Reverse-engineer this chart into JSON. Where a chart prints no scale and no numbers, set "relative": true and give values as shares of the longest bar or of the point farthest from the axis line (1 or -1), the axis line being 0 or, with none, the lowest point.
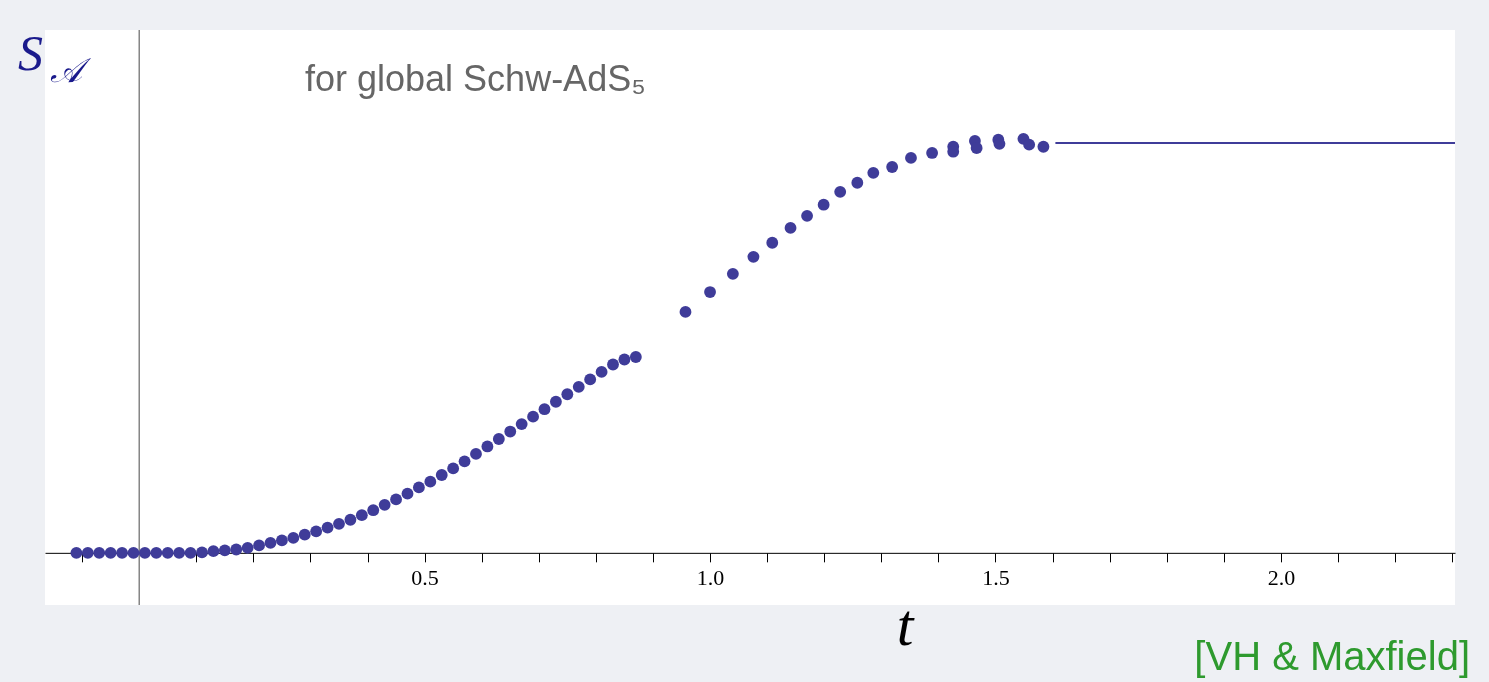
{
  "chart_data": {
    "type": "scatter",
    "relative": true,
    "xlabel": "t",
    "ylabel": "S$_{𝒜}$",
    "annotations": [
      "for global Schw-AdS₅",
      "[VH & Maxfield]"
    ],
    "xlim": [
      -0.165,
      2.305
    ],
    "xticks": [
      {
        "value": -0.1,
        "label": null
      },
      {
        "value": 0.1,
        "label": null
      },
      {
        "value": 0.2,
        "label": null
      },
      {
        "value": 0.3,
        "label": null
      },
      {
        "value": 0.4,
        "label": null
      },
      {
        "value": 0.5,
        "label": "0.5"
      },
      {
        "value": 0.6,
        "label": null
      },
      {
        "value": 0.7,
        "label": null
      },
      {
        "value": 0.8,
        "label": null
      },
      {
        "value": 0.9,
        "label": null
      },
      {
        "value": 1.0,
        "label": "1.0"
      },
      {
        "value": 1.1,
        "label": null
      },
      {
        "value": 1.2,
        "label": null
      },
      {
        "value": 1.3,
        "label": null
      },
      {
        "value": 1.4,
        "label": null
      },
      {
        "value": 1.5,
        "label": "1.5"
      },
      {
        "value": 1.6,
        "label": null
      },
      {
        "value": 1.7,
        "label": null
      },
      {
        "value": 1.8,
        "label": null
      },
      {
        "value": 1.9,
        "label": null
      },
      {
        "value": 2.0,
        "label": "2.0"
      },
      {
        "value": 2.1,
        "label": null
      },
      {
        "value": 2.2,
        "label": null
      },
      {
        "value": 2.3,
        "label": null
      }
    ],
    "grid": false,
    "series": [
      {
        "marker": "circle",
        "color": "#3f3c99",
        "x": [
          -0.11,
          -0.09,
          -0.07,
          -0.05,
          -0.03,
          -0.01,
          0.01,
          0.03,
          0.05,
          0.07,
          0.09,
          0.11,
          0.13,
          0.15,
          0.17,
          0.19,
          0.21,
          0.23,
          0.25,
          0.27,
          0.29,
          0.31,
          0.33,
          0.35,
          0.37,
          0.39,
          0.41,
          0.43,
          0.45,
          0.47,
          0.49,
          0.51,
          0.53,
          0.55,
          0.57,
          0.59,
          0.61,
          0.63,
          0.65,
          0.67,
          0.69,
          0.71,
          0.73,
          0.75,
          0.77,
          0.79,
          0.81,
          0.83,
          0.85,
          0.87,
          0.957,
          1.0,
          1.04,
          1.076,
          1.109,
          1.141,
          1.17,
          1.199,
          1.228,
          1.258,
          1.286,
          1.319,
          1.352,
          1.389,
          1.426,
          1.426,
          1.464,
          1.467,
          1.505,
          1.507,
          1.549,
          1.559,
          1.584
        ],
        "values": [
          0,
          0,
          0,
          0,
          0,
          0,
          0,
          0,
          0,
          0,
          0,
          0.001,
          0.004,
          0.006,
          0.008,
          0.012,
          0.018,
          0.024,
          0.03,
          0.036,
          0.044,
          0.052,
          0.061,
          0.07,
          0.08,
          0.091,
          0.103,
          0.116,
          0.129,
          0.143,
          0.158,
          0.172,
          0.188,
          0.204,
          0.221,
          0.239,
          0.257,
          0.275,
          0.293,
          0.311,
          0.329,
          0.347,
          0.365,
          0.383,
          0.401,
          0.419,
          0.437,
          0.455,
          0.467,
          0.473,
          0.582,
          0.63,
          0.674,
          0.715,
          0.749,
          0.785,
          0.814,
          0.841,
          0.872,
          0.894,
          0.918,
          0.932,
          0.954,
          0.966,
          0.981,
          0.969,
          0.995,
          0.978,
          0.998,
          0.988,
          1.0,
          0.986,
          0.981
        ]
      },
      {
        "type": "line",
        "marker": "none",
        "color": "#3f3c99",
        "x": [
          1.605,
          2.305
        ],
        "values": [
          0.99,
          0.99
        ]
      }
    ]
  }
}
